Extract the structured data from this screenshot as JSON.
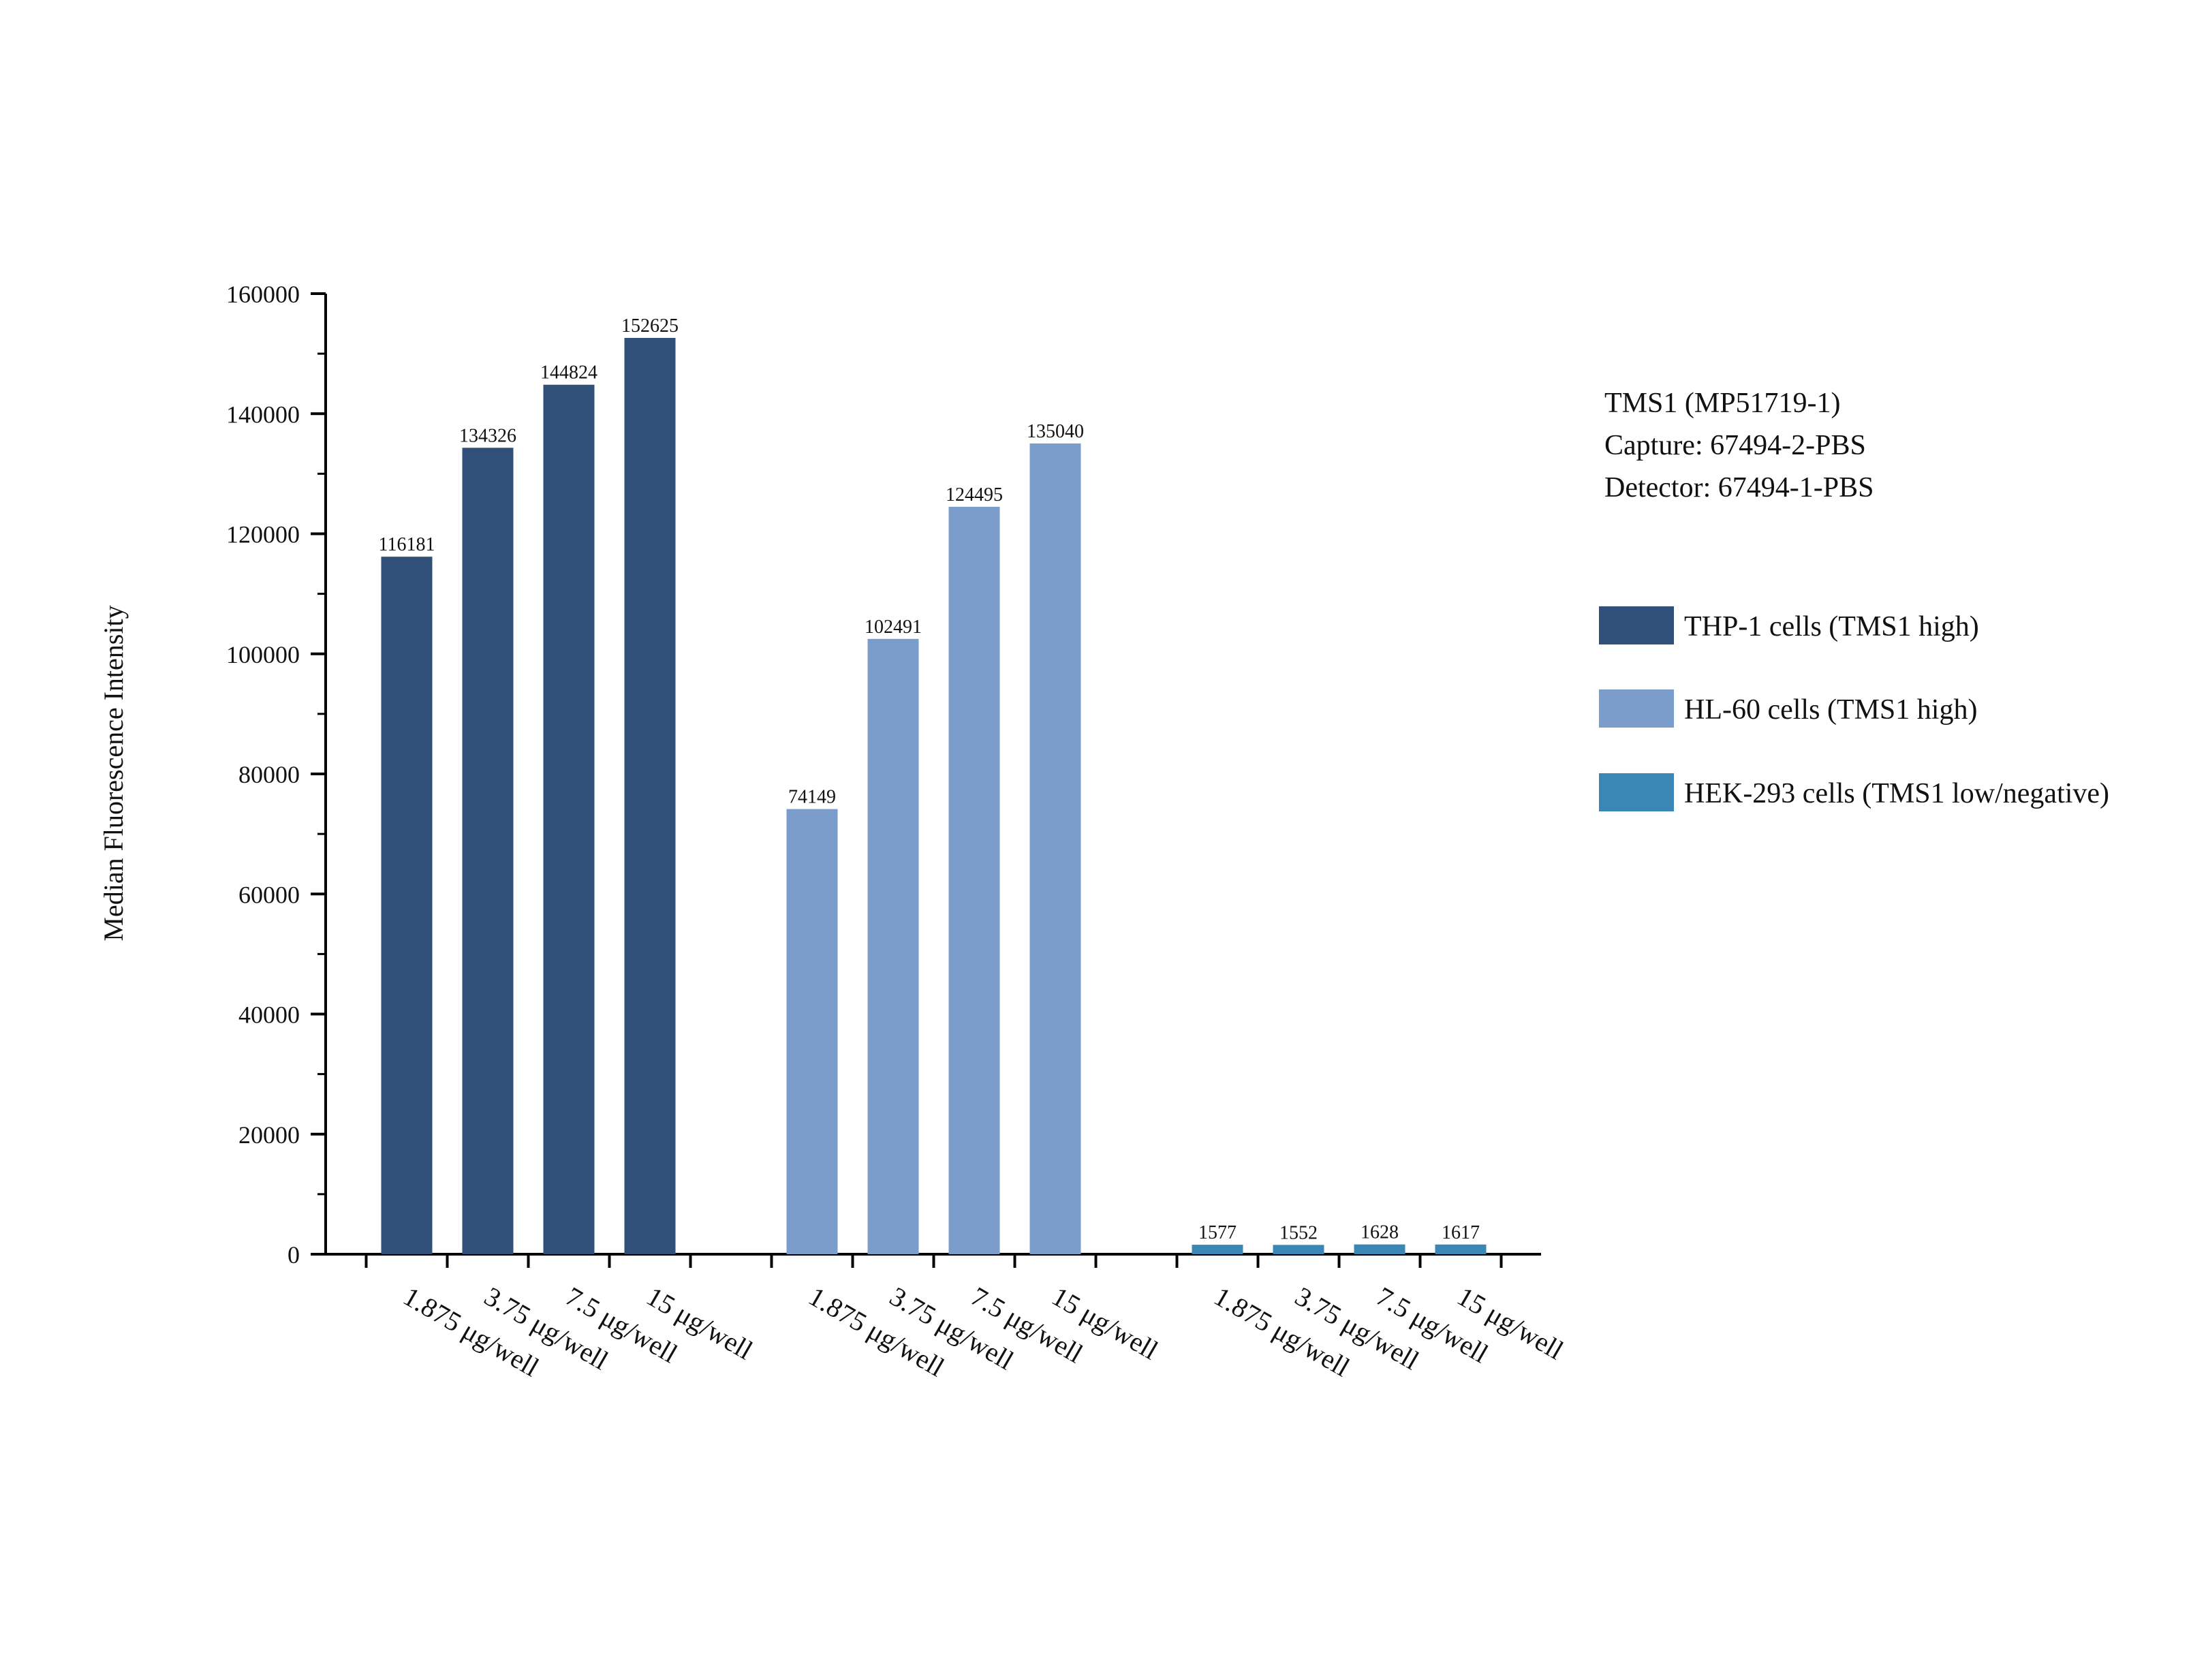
{
  "chart_data": {
    "type": "bar",
    "title": "",
    "ylabel": "Median Fluorescence Intensity",
    "xlabel": "",
    "ylim": [
      0,
      160000
    ],
    "yticks": [
      0,
      20000,
      40000,
      60000,
      80000,
      100000,
      120000,
      140000,
      160000
    ],
    "grid": false,
    "legend_position": "right",
    "info_lines": [
      "TMS1 (MP51719-1)",
      "Capture: 67494-2-PBS",
      "Detector: 67494-1-PBS"
    ],
    "groups": [
      {
        "name": "THP-1 cells (TMS1 high)",
        "color": "#304f79",
        "categories": [
          "1.875 μg/well",
          "3.75 μg/well",
          "7.5 μg/well",
          "15 μg/well"
        ],
        "values": [
          116181,
          134326,
          144824,
          152625
        ],
        "labels": [
          "116181",
          "134326",
          "144824",
          "152625"
        ]
      },
      {
        "name": "HL-60 cells (TMS1 high)",
        "color": "#7b9dcc",
        "categories": [
          "1.875 μg/well",
          "3.75 μg/well",
          "7.5 μg/well",
          "15 μg/well"
        ],
        "values": [
          74149,
          102491,
          124495,
          135040
        ],
        "labels": [
          "74149",
          "102491",
          "124495",
          "135040"
        ]
      },
      {
        "name": "HEK-293 cells (TMS1 low/negative)",
        "color": "#3a87b6",
        "categories": [
          "1.875 μg/well",
          "3.75 μg/well",
          "7.5 μg/well",
          "15 μg/well"
        ],
        "values": [
          1577,
          1552,
          1628,
          1617
        ],
        "labels": [
          "1577",
          "1552",
          "1628",
          "1617"
        ]
      }
    ]
  }
}
